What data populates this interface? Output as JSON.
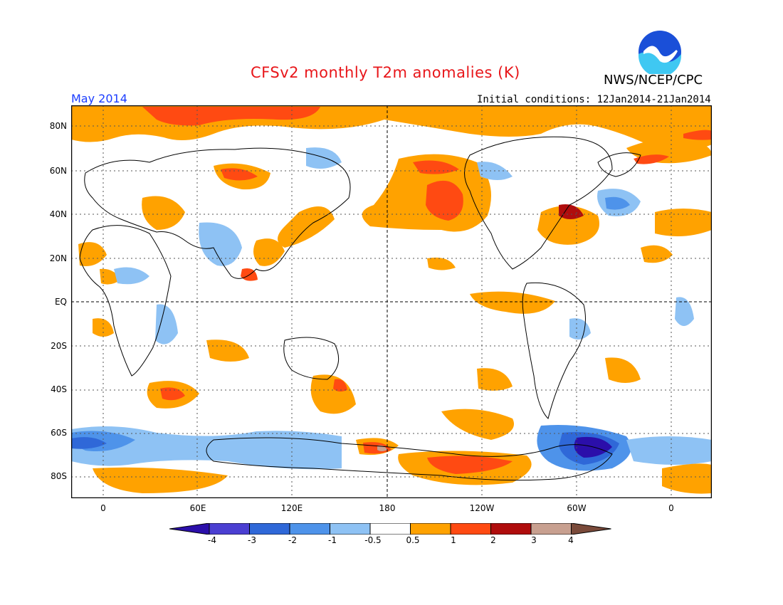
{
  "header": {
    "title": "CFSv2 monthly T2m anomalies (K)",
    "agency": "NWS/NCEP/CPC",
    "logo_text": "NOAA",
    "month": "May 2014",
    "initial_conditions": "Initial conditions: 12Jan2014-21Jan2014"
  },
  "axes": {
    "lat_labels": [
      "80N",
      "60N",
      "40N",
      "20N",
      "EQ",
      "20S",
      "40S",
      "60S",
      "80S"
    ],
    "lon_labels": [
      "0",
      "60E",
      "120E",
      "180",
      "120W",
      "60W",
      "0"
    ]
  },
  "colorbar": {
    "labels": [
      "-4",
      "-3",
      "-2",
      "-1",
      "-0.5",
      "0.5",
      "1",
      "2",
      "3",
      "4"
    ],
    "colors": [
      "#2b0faa",
      "#4b3fd2",
      "#2f68d8",
      "#4e93ea",
      "#8ec2f4",
      "#ffffff",
      "#ffa200",
      "#ff4a12",
      "#b00d0d",
      "#c8a090",
      "#7a4a3a"
    ]
  },
  "colors": {
    "title": "#e8161a",
    "month": "#1a3cff",
    "map_border": "#000000"
  }
}
